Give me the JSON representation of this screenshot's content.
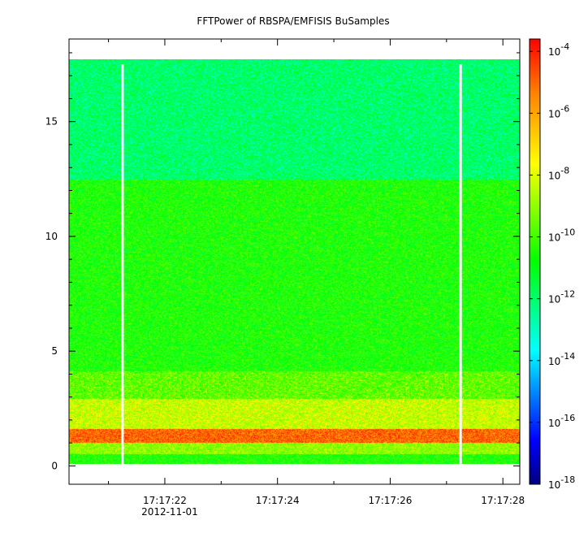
{
  "chart_data": {
    "type": "heatmap",
    "title": "FFTPower of RBSPA/EMFISIS  BuSamples",
    "xlabel": "",
    "ylabel": "",
    "x_date_label": "2012-11-01",
    "x_ticks": [
      "17:17:22",
      "17:17:24",
      "17:17:26",
      "17:17:28"
    ],
    "x_range": [
      "17:17:20.3",
      "17:17:28.3"
    ],
    "y_ticks": [
      0,
      5,
      10,
      15
    ],
    "ylim": [
      -0.8,
      18.6
    ],
    "data_y_extent": [
      0,
      17.5
    ],
    "data_gaps": [
      "17:17:21.25",
      "17:17:27.25"
    ],
    "bands": [
      {
        "y": [
          0.0,
          0.4
        ],
        "log10_power": -10.5
      },
      {
        "y": [
          0.4,
          0.9
        ],
        "log10_power": -9.0
      },
      {
        "y": [
          0.9,
          1.5
        ],
        "log10_power": -5.0
      },
      {
        "y": [
          1.5,
          2.8
        ],
        "log10_power": -8.5
      },
      {
        "y": [
          2.8,
          4.0
        ],
        "log10_power": -9.8
      },
      {
        "y": [
          4.0,
          12.3
        ],
        "log10_power": -10.5
      },
      {
        "y": [
          12.3,
          17.5
        ],
        "log10_power": -12.0
      }
    ],
    "colorbar": {
      "scale": "log",
      "range": [
        -18,
        -3.6
      ],
      "tick_bases": [
        "10",
        "10",
        "10",
        "10",
        "10",
        "10",
        "10",
        "10"
      ],
      "tick_exponents": [
        "-4",
        "-6",
        "-8",
        "-10",
        "-12",
        "-14",
        "-16",
        "-18"
      ],
      "tick_values": [
        -4,
        -6,
        -8,
        -10,
        -12,
        -14,
        -16,
        -18
      ]
    }
  }
}
